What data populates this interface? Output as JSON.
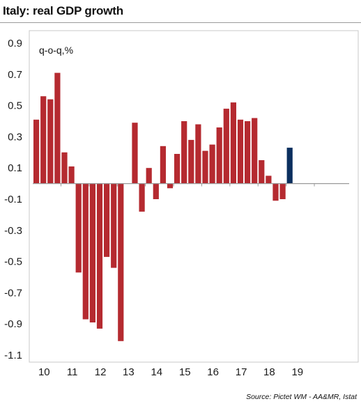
{
  "title": "Italy: real GDP growth",
  "unit_label": "q-o-q,%",
  "source": "Source: Pictet WM - AA&MR, Istat",
  "colors": {
    "historical": "#b52a30",
    "latest": "#0b2f5e",
    "axis": "#9a9a9a",
    "frame": "#c8c8c8"
  },
  "chart_data": {
    "type": "bar",
    "title": "Italy: real GDP growth",
    "ylabel": "q-o-q,%",
    "ylim": [
      -1.1,
      0.9
    ],
    "yticks": [
      0.9,
      0.7,
      0.5,
      0.3,
      0.1,
      -0.1,
      -0.3,
      -0.5,
      -0.7,
      -0.9,
      -1.1
    ],
    "ytick_labels": [
      "0.9",
      "0.7",
      "0.5",
      "0.3",
      "0.1",
      "-0.1",
      "-0.3",
      "-0.5",
      "-0.7",
      "-0.9",
      "-1.1"
    ],
    "x_tick_labels": [
      "10",
      "11",
      "12",
      "13",
      "14",
      "15",
      "16",
      "17",
      "18",
      "19"
    ],
    "quarters_per_year": 4,
    "grid": false,
    "series": [
      {
        "values": [
          0.41,
          0.56,
          0.54,
          0.71,
          0.2,
          0.11,
          -0.57,
          -0.87,
          -0.89,
          -0.93,
          -0.47,
          -0.54,
          -1.01,
          0.0,
          0.39,
          -0.18,
          0.1,
          -0.1,
          0.24,
          -0.03,
          0.19,
          0.4,
          0.28,
          0.38,
          0.21,
          0.25,
          0.36,
          0.48,
          0.52,
          0.41,
          0.4,
          0.42,
          0.15,
          0.05,
          -0.11,
          -0.1,
          0.23
        ],
        "colors": [
          "historical",
          "historical",
          "historical",
          "historical",
          "historical",
          "historical",
          "historical",
          "historical",
          "historical",
          "historical",
          "historical",
          "historical",
          "historical",
          "historical",
          "historical",
          "historical",
          "historical",
          "historical",
          "historical",
          "historical",
          "historical",
          "historical",
          "historical",
          "historical",
          "historical",
          "historical",
          "historical",
          "historical",
          "historical",
          "historical",
          "historical",
          "historical",
          "historical",
          "historical",
          "historical",
          "historical",
          "latest"
        ]
      }
    ]
  }
}
